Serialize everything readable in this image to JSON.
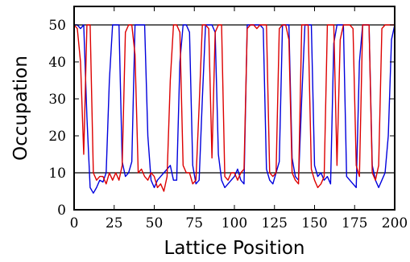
{
  "chart_data": {
    "type": "line",
    "title": "",
    "xlabel": "Lattice Position",
    "ylabel": "Occupation",
    "xlim": [
      0,
      200
    ],
    "ylim": [
      0,
      55
    ],
    "x_ticks": [
      0,
      25,
      50,
      75,
      100,
      125,
      150,
      175,
      200
    ],
    "x_tick_labels": [
      "0",
      "25",
      "50",
      "75",
      "100",
      "125",
      "150",
      "175",
      "200"
    ],
    "y_ticks": [
      0,
      10,
      20,
      30,
      40,
      50
    ],
    "y_tick_labels": [
      "0",
      "10",
      "20",
      "30",
      "40",
      "50"
    ],
    "reference_lines_y": [
      10,
      50
    ],
    "grid": false,
    "legend": "none",
    "series": [
      {
        "color": "#0000dd",
        "points": [
          [
            0,
            50
          ],
          [
            2,
            50
          ],
          [
            4,
            49
          ],
          [
            6,
            50
          ],
          [
            8,
            25
          ],
          [
            10,
            6
          ],
          [
            12,
            4.5
          ],
          [
            14,
            6
          ],
          [
            16,
            8
          ],
          [
            18,
            7.5
          ],
          [
            20,
            10
          ],
          [
            22,
            35
          ],
          [
            24,
            50
          ],
          [
            26,
            50
          ],
          [
            28,
            50
          ],
          [
            30,
            13
          ],
          [
            32,
            9
          ],
          [
            34,
            10
          ],
          [
            36,
            13
          ],
          [
            38,
            50
          ],
          [
            40,
            50
          ],
          [
            42,
            50
          ],
          [
            44,
            50
          ],
          [
            46,
            20
          ],
          [
            48,
            8
          ],
          [
            50,
            6
          ],
          [
            52,
            8
          ],
          [
            54,
            9
          ],
          [
            56,
            10
          ],
          [
            58,
            11
          ],
          [
            60,
            12
          ],
          [
            62,
            8
          ],
          [
            64,
            8
          ],
          [
            66,
            40
          ],
          [
            68,
            50
          ],
          [
            70,
            50
          ],
          [
            72,
            48
          ],
          [
            74,
            12
          ],
          [
            76,
            7
          ],
          [
            78,
            8
          ],
          [
            80,
            30
          ],
          [
            82,
            50
          ],
          [
            84,
            50
          ],
          [
            86,
            50
          ],
          [
            88,
            48
          ],
          [
            90,
            15
          ],
          [
            92,
            8
          ],
          [
            94,
            6
          ],
          [
            96,
            7
          ],
          [
            98,
            8
          ],
          [
            100,
            9
          ],
          [
            102,
            11
          ],
          [
            104,
            8
          ],
          [
            106,
            7
          ],
          [
            108,
            50
          ],
          [
            110,
            50
          ],
          [
            112,
            50
          ],
          [
            114,
            50
          ],
          [
            116,
            50
          ],
          [
            118,
            49
          ],
          [
            120,
            11
          ],
          [
            122,
            8
          ],
          [
            124,
            7
          ],
          [
            126,
            10
          ],
          [
            128,
            13
          ],
          [
            130,
            50
          ],
          [
            132,
            50
          ],
          [
            134,
            50
          ],
          [
            136,
            14
          ],
          [
            138,
            9
          ],
          [
            140,
            8
          ],
          [
            142,
            30
          ],
          [
            144,
            50
          ],
          [
            146,
            50
          ],
          [
            148,
            50
          ],
          [
            150,
            12
          ],
          [
            152,
            9
          ],
          [
            154,
            10
          ],
          [
            156,
            8
          ],
          [
            158,
            9
          ],
          [
            160,
            7
          ],
          [
            162,
            45
          ],
          [
            164,
            50
          ],
          [
            166,
            50
          ],
          [
            168,
            50
          ],
          [
            170,
            9
          ],
          [
            172,
            8
          ],
          [
            174,
            7
          ],
          [
            176,
            6
          ],
          [
            178,
            40
          ],
          [
            180,
            50
          ],
          [
            182,
            50
          ],
          [
            184,
            50
          ],
          [
            186,
            12
          ],
          [
            188,
            8
          ],
          [
            190,
            6
          ],
          [
            192,
            8
          ],
          [
            194,
            10
          ],
          [
            196,
            20
          ],
          [
            198,
            46
          ],
          [
            200,
            50
          ]
        ]
      },
      {
        "color": "#dd0000",
        "points": [
          [
            0,
            50
          ],
          [
            2,
            49
          ],
          [
            4,
            40
          ],
          [
            6,
            15
          ],
          [
            8,
            50
          ],
          [
            10,
            50
          ],
          [
            12,
            10
          ],
          [
            14,
            8
          ],
          [
            16,
            9
          ],
          [
            18,
            9
          ],
          [
            20,
            7
          ],
          [
            22,
            10
          ],
          [
            24,
            8
          ],
          [
            26,
            10
          ],
          [
            28,
            8
          ],
          [
            30,
            12
          ],
          [
            32,
            48
          ],
          [
            34,
            50
          ],
          [
            36,
            50
          ],
          [
            38,
            42
          ],
          [
            40,
            10
          ],
          [
            42,
            11
          ],
          [
            44,
            9
          ],
          [
            46,
            8
          ],
          [
            48,
            10
          ],
          [
            50,
            9
          ],
          [
            52,
            6
          ],
          [
            54,
            7
          ],
          [
            56,
            5
          ],
          [
            58,
            9
          ],
          [
            60,
            35
          ],
          [
            62,
            50
          ],
          [
            64,
            50
          ],
          [
            66,
            48
          ],
          [
            68,
            12
          ],
          [
            70,
            10
          ],
          [
            72,
            10
          ],
          [
            74,
            7
          ],
          [
            76,
            8
          ],
          [
            78,
            28
          ],
          [
            80,
            50
          ],
          [
            82,
            50
          ],
          [
            84,
            49
          ],
          [
            86,
            14
          ],
          [
            88,
            48
          ],
          [
            90,
            50
          ],
          [
            92,
            50
          ],
          [
            94,
            9
          ],
          [
            96,
            8
          ],
          [
            98,
            10
          ],
          [
            100,
            10
          ],
          [
            102,
            8
          ],
          [
            104,
            10
          ],
          [
            106,
            11
          ],
          [
            108,
            49
          ],
          [
            110,
            50
          ],
          [
            112,
            50
          ],
          [
            114,
            49
          ],
          [
            116,
            50
          ],
          [
            118,
            50
          ],
          [
            120,
            50
          ],
          [
            122,
            10
          ],
          [
            124,
            9
          ],
          [
            126,
            10
          ],
          [
            128,
            49
          ],
          [
            130,
            50
          ],
          [
            132,
            50
          ],
          [
            134,
            46
          ],
          [
            136,
            10
          ],
          [
            138,
            8
          ],
          [
            140,
            7
          ],
          [
            142,
            50
          ],
          [
            144,
            50
          ],
          [
            146,
            50
          ],
          [
            148,
            11
          ],
          [
            150,
            8
          ],
          [
            152,
            6
          ],
          [
            154,
            7
          ],
          [
            156,
            9
          ],
          [
            158,
            50
          ],
          [
            160,
            50
          ],
          [
            162,
            50
          ],
          [
            164,
            12
          ],
          [
            166,
            46
          ],
          [
            168,
            50
          ],
          [
            170,
            50
          ],
          [
            172,
            50
          ],
          [
            174,
            49
          ],
          [
            176,
            12
          ],
          [
            178,
            9
          ],
          [
            180,
            50
          ],
          [
            182,
            50
          ],
          [
            184,
            50
          ],
          [
            186,
            10
          ],
          [
            188,
            8
          ],
          [
            190,
            12
          ],
          [
            192,
            49
          ],
          [
            194,
            50
          ],
          [
            196,
            50
          ],
          [
            198,
            50
          ],
          [
            200,
            50
          ]
        ]
      }
    ]
  }
}
